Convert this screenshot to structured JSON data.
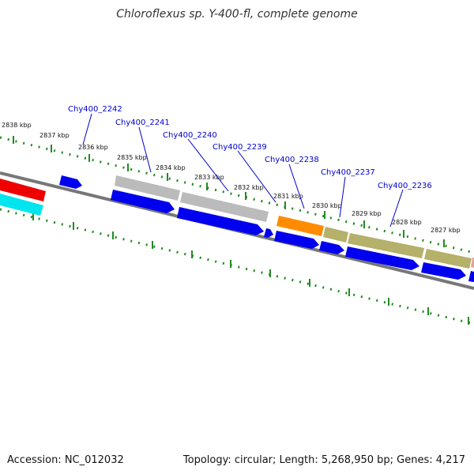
{
  "title": "Chloroflexus sp. Y-400-fl, complete genome",
  "footer": {
    "accession": "Accession: NC_012032",
    "topology": "Topology: circular; Length: 5,268,950 bp; Genes: 4,217"
  },
  "ticks": [
    "2838 kbp",
    "2837 kbp",
    "2836 kbp",
    "2835 kbp",
    "2834 kbp",
    "2833 kbp",
    "2832 kbp",
    "2831 kbp",
    "2830 kbp",
    "2829 kbp",
    "2828 kbp",
    "2827 kbp"
  ],
  "genes": [
    "Chy400_2242",
    "Chy400_2241",
    "Chy400_2240",
    "Chy400_2239",
    "Chy400_2238",
    "Chy400_2237",
    "Chy400_2236"
  ],
  "colors": {
    "backbone": "#777777",
    "ticks": "#228b22",
    "cds": "#0000ee",
    "gene_grey": "#bbbbbb",
    "gene_orange": "#ff8c00",
    "gene_olive": "#b5b06a",
    "gene_red": "#ee0000",
    "gene_cyan": "#00e5ee",
    "gene_pink": "#e8a0a0",
    "label": "#0000cc"
  }
}
